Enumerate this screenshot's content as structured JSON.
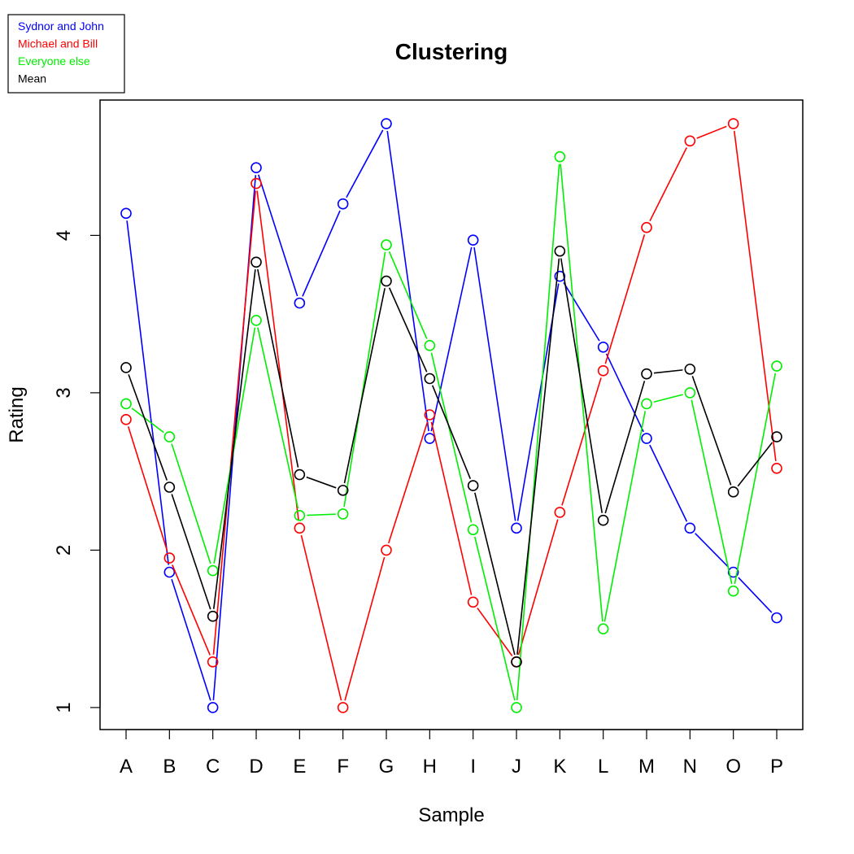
{
  "chart_data": {
    "type": "line",
    "title": "Clustering",
    "xlabel": "Sample",
    "ylabel": "Rating",
    "categories": [
      "A",
      "B",
      "C",
      "D",
      "E",
      "F",
      "G",
      "H",
      "I",
      "J",
      "K",
      "L",
      "M",
      "N",
      "O",
      "P"
    ],
    "yticks": [
      1,
      2,
      3,
      4
    ],
    "ylim": [
      0.86,
      4.86
    ],
    "legend_position": "top-left",
    "marker": "open-circle",
    "series": [
      {
        "name": "Sydnor and John",
        "color": "#0000ff",
        "values": [
          4.14,
          1.86,
          1.0,
          4.43,
          3.57,
          4.2,
          4.71,
          2.71,
          3.97,
          2.14,
          3.74,
          3.29,
          2.71,
          2.14,
          1.86,
          1.57
        ]
      },
      {
        "name": "Michael and Bill",
        "color": "#ff0000",
        "values": [
          2.83,
          1.95,
          1.29,
          4.33,
          2.14,
          1.0,
          2.0,
          2.86,
          1.67,
          1.29,
          2.24,
          3.14,
          4.05,
          4.6,
          4.71,
          2.52
        ]
      },
      {
        "name": "Everyone else",
        "color": "#00ee00",
        "values": [
          2.93,
          2.72,
          1.87,
          3.46,
          2.22,
          2.23,
          3.94,
          3.3,
          2.13,
          1.0,
          4.5,
          1.5,
          2.93,
          3.0,
          1.74,
          3.17
        ]
      },
      {
        "name": "Mean",
        "color": "#000000",
        "values": [
          3.16,
          2.4,
          1.58,
          3.83,
          2.48,
          2.38,
          3.71,
          3.09,
          2.41,
          1.29,
          3.9,
          2.19,
          3.12,
          3.15,
          2.37,
          2.72
        ]
      }
    ]
  }
}
